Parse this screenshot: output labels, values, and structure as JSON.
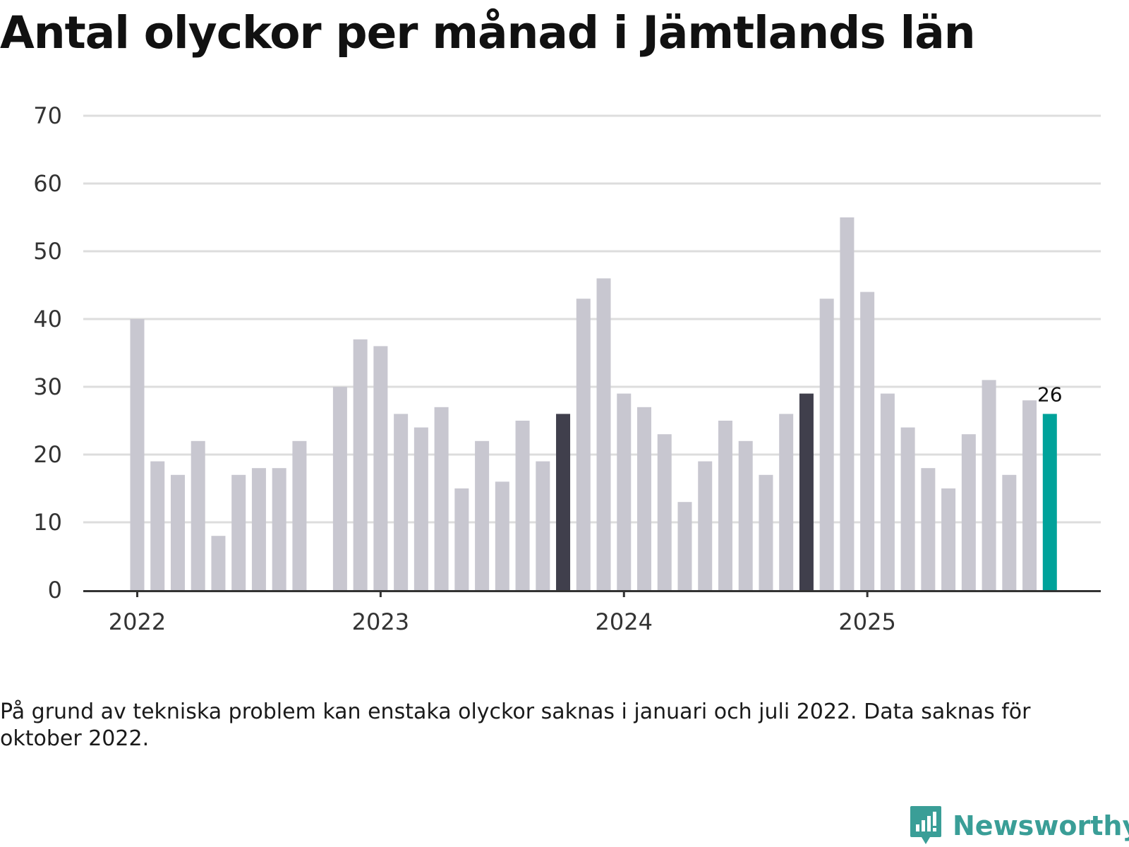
{
  "title": "Antal olyckor per månad i Jämtlands län",
  "footnote": "På grund av tekniska problem kan enstaka olyckor saknas i januari och juli 2022. Data saknas för oktober 2022.",
  "brand": {
    "name": "Newsworthy",
    "icon": "newsworthy-logo-icon",
    "color": "#3a9e97"
  },
  "colors": {
    "default": "#c8c7d0",
    "highlight": "#403f4c",
    "latest": "#00a29a",
    "grid": "#dddddd",
    "axis": "#333333"
  },
  "chart_data": {
    "type": "bar",
    "title": "Antal olyckor per månad i Jämtlands län",
    "xlabel": "",
    "ylabel": "",
    "ylim": [
      0,
      70
    ],
    "yticks": [
      0,
      10,
      20,
      30,
      40,
      50,
      60,
      70
    ],
    "grid": true,
    "xtick_labels": [
      {
        "label": "2022",
        "month": "2022-01"
      },
      {
        "label": "2023",
        "month": "2023-01"
      },
      {
        "label": "2024",
        "month": "2024-01"
      },
      {
        "label": "2025",
        "month": "2025-01"
      }
    ],
    "categories": [
      "2021-11",
      "2021-12",
      "2022-01",
      "2022-02",
      "2022-03",
      "2022-04",
      "2022-05",
      "2022-06",
      "2022-07",
      "2022-08",
      "2022-09",
      "2022-10",
      "2022-11",
      "2022-12",
      "2023-01",
      "2023-02",
      "2023-03",
      "2023-04",
      "2023-05",
      "2023-06",
      "2023-07",
      "2023-08",
      "2023-09",
      "2023-10",
      "2023-11",
      "2023-12",
      "2024-01",
      "2024-02",
      "2024-03",
      "2024-04",
      "2024-05",
      "2024-06",
      "2024-07",
      "2024-08",
      "2024-09",
      "2024-10",
      "2024-11",
      "2024-12",
      "2025-01",
      "2025-02",
      "2025-03",
      "2025-04",
      "2025-05",
      "2025-06",
      "2025-07",
      "2025-08",
      "2025-09",
      "2025-10"
    ],
    "values": [
      null,
      null,
      40,
      19,
      17,
      22,
      8,
      17,
      18,
      18,
      22,
      null,
      30,
      37,
      36,
      26,
      24,
      27,
      15,
      22,
      16,
      25,
      19,
      26,
      43,
      46,
      29,
      27,
      23,
      13,
      19,
      25,
      22,
      17,
      26,
      29,
      43,
      55,
      44,
      29,
      24,
      18,
      15,
      23,
      31,
      17,
      28,
      26
    ],
    "highlighted": [
      "2023-10",
      "2024-10"
    ],
    "latest": "2025-10",
    "annotations": [
      {
        "category": "2025-10",
        "text": "26"
      }
    ]
  }
}
